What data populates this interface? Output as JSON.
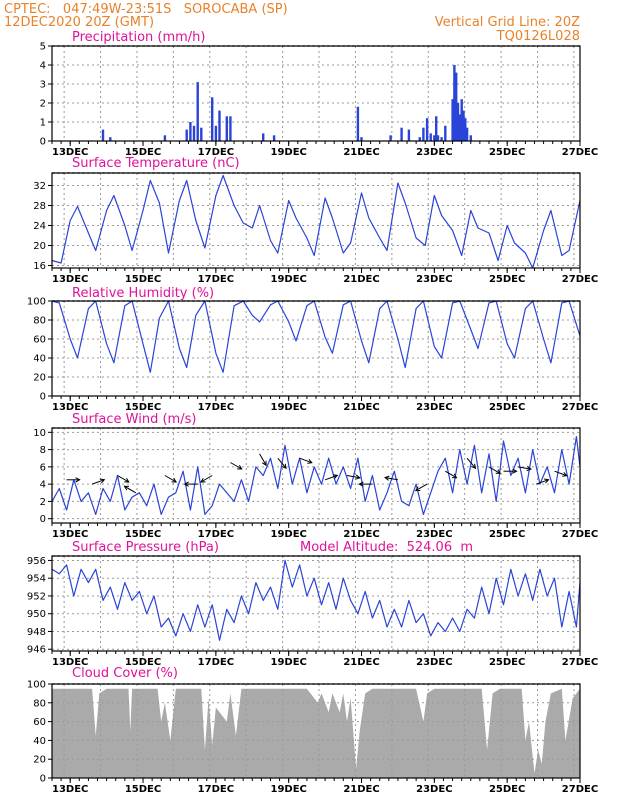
{
  "header": {
    "station_line": "CPTEC:   047:49W-23:51S   SOROCABA (SP)",
    "date_line": "12DEC2020 20Z (GMT)",
    "grid_line": "Vertical Grid Line: 20Z",
    "code": "TQ0126L028"
  },
  "colors": {
    "header": "#e8822a",
    "title": "#e0119a",
    "line": "#2a44d8",
    "cloud": "#aaaaaa"
  },
  "x_axis": {
    "labels": [
      "13DEC",
      "15DEC",
      "17DEC",
      "19DEC",
      "21DEC",
      "23DEC",
      "25DEC",
      "27DEC"
    ],
    "day_range": [
      12.5,
      27.0
    ]
  },
  "chart_data": [
    {
      "type": "bar",
      "key": "precip",
      "title": "Precipitation (mm/h)",
      "ylim": [
        0,
        5
      ],
      "yticks": [
        0,
        1,
        2,
        3,
        4,
        5
      ],
      "x": [
        13.9,
        14.1,
        15.6,
        16.2,
        16.3,
        16.4,
        16.5,
        16.6,
        16.9,
        17.0,
        17.1,
        17.3,
        17.4,
        18.3,
        18.6,
        20.9,
        21.0,
        21.8,
        22.1,
        22.3,
        22.6,
        22.7,
        22.8,
        22.9,
        23.0,
        23.05,
        23.1,
        23.2,
        23.3,
        23.5,
        23.55,
        23.6,
        23.65,
        23.7,
        23.75,
        23.8,
        23.85,
        23.9,
        24.0
      ],
      "values": [
        0.6,
        0.2,
        0.3,
        0.6,
        1.0,
        0.8,
        3.1,
        0.7,
        2.3,
        0.8,
        1.6,
        1.3,
        1.3,
        0.4,
        0.3,
        1.8,
        0.2,
        0.3,
        0.7,
        0.6,
        0.2,
        0.7,
        1.2,
        0.4,
        0.3,
        1.3,
        0.3,
        0.2,
        0.8,
        2.2,
        4.0,
        3.6,
        2.0,
        1.4,
        2.2,
        1.6,
        1.2,
        0.7,
        0.3
      ]
    },
    {
      "type": "line",
      "key": "temp",
      "title": "Surface Temperature (nC)",
      "ylim": [
        15.5,
        34.5
      ],
      "yticks": [
        16,
        20,
        24,
        28,
        32
      ],
      "x": [
        12.5,
        12.75,
        13.0,
        13.2,
        13.5,
        13.7,
        14.0,
        14.2,
        14.5,
        14.7,
        15.0,
        15.2,
        15.45,
        15.7,
        16.0,
        16.2,
        16.45,
        16.7,
        17.0,
        17.2,
        17.5,
        17.75,
        18.0,
        18.2,
        18.5,
        18.7,
        19.0,
        19.2,
        19.5,
        19.7,
        20.0,
        20.2,
        20.5,
        20.7,
        21.0,
        21.2,
        21.5,
        21.7,
        22.0,
        22.2,
        22.5,
        22.75,
        23.0,
        23.2,
        23.5,
        23.75,
        24.0,
        24.2,
        24.5,
        24.75,
        25.0,
        25.2,
        25.5,
        25.7,
        26.0,
        26.2,
        26.5,
        26.7,
        27.0
      ],
      "values": [
        17,
        16.5,
        25,
        27.8,
        22.5,
        19,
        27,
        30,
        24,
        19,
        27,
        33,
        28.5,
        18.5,
        29,
        33,
        25,
        19.5,
        30,
        34,
        28,
        24.5,
        23.5,
        28,
        21,
        18.5,
        29,
        25.5,
        21.5,
        18,
        29.5,
        25.5,
        18.5,
        20.5,
        30.5,
        25.5,
        21.5,
        19,
        32.5,
        28.5,
        21.5,
        20,
        30,
        26,
        23,
        18,
        27,
        23.5,
        22.5,
        17,
        24,
        20.5,
        18.5,
        15.5,
        23,
        27,
        18,
        19,
        29
      ]
    },
    {
      "type": "line",
      "key": "rh",
      "title": "Relative Humidity (%)",
      "ylim": [
        0,
        100
      ],
      "yticks": [
        0,
        20,
        40,
        60,
        80,
        100
      ],
      "x": [
        12.5,
        12.7,
        13.0,
        13.2,
        13.5,
        13.7,
        14.0,
        14.2,
        14.5,
        14.7,
        15.0,
        15.2,
        15.45,
        15.7,
        16.0,
        16.2,
        16.45,
        16.7,
        17.0,
        17.2,
        17.5,
        17.75,
        18.0,
        18.2,
        18.5,
        18.7,
        19.0,
        19.2,
        19.5,
        19.7,
        20.0,
        20.2,
        20.5,
        20.7,
        21.0,
        21.2,
        21.5,
        21.7,
        22.0,
        22.2,
        22.5,
        22.7,
        23.0,
        23.2,
        23.5,
        23.7,
        24.0,
        24.2,
        24.5,
        24.7,
        25.0,
        25.2,
        25.5,
        25.7,
        26.0,
        26.2,
        26.5,
        26.7,
        27.0
      ],
      "values": [
        100,
        98,
        60,
        40,
        92,
        100,
        55,
        35,
        95,
        100,
        55,
        25,
        82,
        100,
        50,
        30,
        85,
        100,
        45,
        25,
        95,
        100,
        85,
        78,
        96,
        100,
        78,
        58,
        95,
        100,
        62,
        45,
        96,
        100,
        58,
        35,
        92,
        100,
        60,
        30,
        92,
        100,
        52,
        40,
        98,
        100,
        70,
        50,
        98,
        100,
        55,
        40,
        92,
        100,
        60,
        35,
        98,
        100,
        63
      ]
    },
    {
      "type": "line",
      "key": "wind",
      "title": "Surface Wind (m/s)",
      "ylim": [
        -0.5,
        10.5
      ],
      "yticks": [
        0,
        2,
        4,
        6,
        8,
        10
      ],
      "x": [
        12.5,
        12.7,
        12.9,
        13.1,
        13.3,
        13.5,
        13.7,
        13.9,
        14.1,
        14.3,
        14.5,
        14.7,
        14.9,
        15.1,
        15.3,
        15.5,
        15.7,
        15.9,
        16.1,
        16.3,
        16.5,
        16.7,
        16.9,
        17.1,
        17.3,
        17.5,
        17.7,
        17.9,
        18.1,
        18.3,
        18.5,
        18.7,
        18.9,
        19.1,
        19.3,
        19.5,
        19.7,
        19.9,
        20.1,
        20.3,
        20.5,
        20.7,
        20.9,
        21.1,
        21.3,
        21.5,
        21.7,
        21.9,
        22.1,
        22.3,
        22.5,
        22.7,
        22.9,
        23.1,
        23.3,
        23.5,
        23.7,
        23.9,
        24.1,
        24.3,
        24.5,
        24.7,
        24.9,
        25.1,
        25.3,
        25.5,
        25.7,
        25.9,
        26.1,
        26.3,
        26.5,
        26.7,
        26.9,
        27.0
      ],
      "values": [
        2,
        3.5,
        1,
        4.5,
        2,
        3,
        0.5,
        3.5,
        2,
        5,
        1,
        2.5,
        3,
        1.5,
        4,
        0.5,
        2.5,
        3,
        5.5,
        1,
        6,
        0.5,
        1.5,
        4,
        3,
        2,
        4.5,
        2,
        6,
        5,
        7,
        3.5,
        8.5,
        4,
        7,
        3,
        6,
        4,
        7,
        4,
        6,
        3.5,
        7,
        2,
        5,
        1,
        3,
        5.5,
        2,
        1.5,
        4,
        0.5,
        3,
        5.5,
        7,
        3,
        8,
        4,
        8.5,
        3,
        7.5,
        2,
        9,
        5,
        7,
        3,
        8,
        4,
        6,
        3,
        8,
        4,
        9.5,
        6
      ]
    },
    {
      "type": "line",
      "key": "pressure",
      "title": "Surface Pressure (hPa)",
      "ylim": [
        945.8,
        956.5
      ],
      "yticks": [
        946,
        948,
        950,
        952,
        954,
        956
      ],
      "x": [
        12.5,
        12.7,
        12.9,
        13.1,
        13.3,
        13.5,
        13.7,
        13.9,
        14.1,
        14.3,
        14.5,
        14.7,
        14.9,
        15.1,
        15.3,
        15.5,
        15.7,
        15.9,
        16.1,
        16.3,
        16.5,
        16.7,
        16.9,
        17.1,
        17.3,
        17.5,
        17.7,
        17.9,
        18.1,
        18.3,
        18.5,
        18.7,
        18.9,
        19.1,
        19.3,
        19.5,
        19.7,
        19.9,
        20.1,
        20.3,
        20.5,
        20.7,
        20.9,
        21.1,
        21.3,
        21.5,
        21.7,
        21.9,
        22.1,
        22.3,
        22.5,
        22.7,
        22.9,
        23.1,
        23.3,
        23.5,
        23.7,
        23.9,
        24.1,
        24.3,
        24.5,
        24.7,
        24.9,
        25.1,
        25.3,
        25.5,
        25.7,
        25.9,
        26.1,
        26.3,
        26.5,
        26.7,
        26.9,
        27.0
      ],
      "values": [
        955,
        954.5,
        955.5,
        952,
        955,
        953.5,
        955,
        951.5,
        953,
        950.5,
        953.5,
        951.5,
        952.5,
        950,
        952,
        948.5,
        949.5,
        947.5,
        950,
        948,
        951,
        948.5,
        951,
        947,
        950.5,
        949,
        952,
        950,
        953.5,
        951.5,
        953,
        950.5,
        956,
        953,
        955.5,
        952,
        954,
        951,
        953.5,
        950.5,
        954,
        951.5,
        950,
        952.5,
        949.5,
        951.5,
        948.5,
        950.5,
        948.5,
        951.5,
        949,
        950,
        947.5,
        949,
        948,
        949.5,
        948,
        950.5,
        949.5,
        953,
        950,
        954,
        951,
        955,
        952,
        954.5,
        951.5,
        955,
        952,
        954,
        948.5,
        952.5,
        948.5,
        953.5
      ]
    },
    {
      "type": "area",
      "key": "cloud",
      "title": "Cloud Cover (%)",
      "ylim": [
        0,
        100
      ],
      "yticks": [
        0,
        20,
        40,
        60,
        80,
        100
      ],
      "x": [
        12.5,
        13.0,
        13.6,
        13.7,
        13.8,
        14.0,
        14.6,
        14.65,
        14.7,
        15.0,
        15.4,
        15.5,
        15.6,
        15.75,
        15.9,
        16.2,
        16.4,
        16.6,
        16.7,
        16.8,
        16.9,
        17.0,
        17.3,
        17.4,
        17.55,
        17.7,
        18.0,
        18.5,
        19.0,
        19.5,
        19.8,
        19.9,
        20.1,
        20.2,
        20.4,
        20.5,
        20.6,
        20.7,
        20.85,
        20.95,
        21.1,
        21.3,
        21.5,
        21.8,
        22.0,
        22.2,
        22.5,
        22.7,
        22.8,
        23.0,
        23.5,
        24.0,
        24.3,
        24.45,
        24.6,
        24.8,
        25.0,
        25.2,
        25.4,
        25.5,
        25.6,
        25.75,
        25.85,
        25.95,
        26.05,
        26.2,
        26.5,
        26.6,
        26.8,
        27.0
      ],
      "values": [
        95,
        95,
        95,
        45,
        90,
        95,
        95,
        50,
        95,
        95,
        95,
        60,
        80,
        40,
        95,
        95,
        95,
        95,
        30,
        85,
        35,
        75,
        60,
        90,
        45,
        95,
        95,
        95,
        95,
        95,
        80,
        90,
        70,
        90,
        70,
        90,
        60,
        85,
        10,
        50,
        90,
        95,
        95,
        95,
        95,
        95,
        95,
        60,
        90,
        95,
        95,
        95,
        95,
        30,
        90,
        95,
        95,
        95,
        95,
        40,
        60,
        5,
        30,
        15,
        60,
        90,
        95,
        40,
        85,
        95
      ]
    }
  ],
  "wind_arrows": [
    {
      "day": 12.9,
      "speed": 4.5,
      "dir": 270
    },
    {
      "day": 13.6,
      "speed": 4.0,
      "dir": 250
    },
    {
      "day": 14.3,
      "speed": 5.0,
      "dir": 300
    },
    {
      "day": 14.8,
      "speed": 3.0,
      "dir": 120
    },
    {
      "day": 15.6,
      "speed": 5.0,
      "dir": 300
    },
    {
      "day": 16.5,
      "speed": 4.0,
      "dir": 90
    },
    {
      "day": 16.9,
      "speed": 5.0,
      "dir": 60
    },
    {
      "day": 17.4,
      "speed": 6.5,
      "dir": 300
    },
    {
      "day": 18.2,
      "speed": 7.5,
      "dir": 330
    },
    {
      "day": 18.7,
      "speed": 7.0,
      "dir": 320
    },
    {
      "day": 19.3,
      "speed": 7.0,
      "dir": 290
    },
    {
      "day": 20.0,
      "speed": 4.5,
      "dir": 250
    },
    {
      "day": 20.6,
      "speed": 5.0,
      "dir": 280
    },
    {
      "day": 21.3,
      "speed": 4.0,
      "dir": 90
    },
    {
      "day": 22.0,
      "speed": 4.5,
      "dir": 100
    },
    {
      "day": 22.8,
      "speed": 4.0,
      "dir": 60
    },
    {
      "day": 23.3,
      "speed": 5.5,
      "dir": 300
    },
    {
      "day": 23.9,
      "speed": 7.0,
      "dir": 320
    },
    {
      "day": 24.5,
      "speed": 6.0,
      "dir": 300
    },
    {
      "day": 24.9,
      "speed": 5.5,
      "dir": 270
    },
    {
      "day": 25.3,
      "speed": 6.0,
      "dir": 280
    },
    {
      "day": 25.8,
      "speed": 4.0,
      "dir": 250
    },
    {
      "day": 26.3,
      "speed": 5.5,
      "dir": 290
    }
  ],
  "model_altitude": "Model Altitude:  524.06  m"
}
